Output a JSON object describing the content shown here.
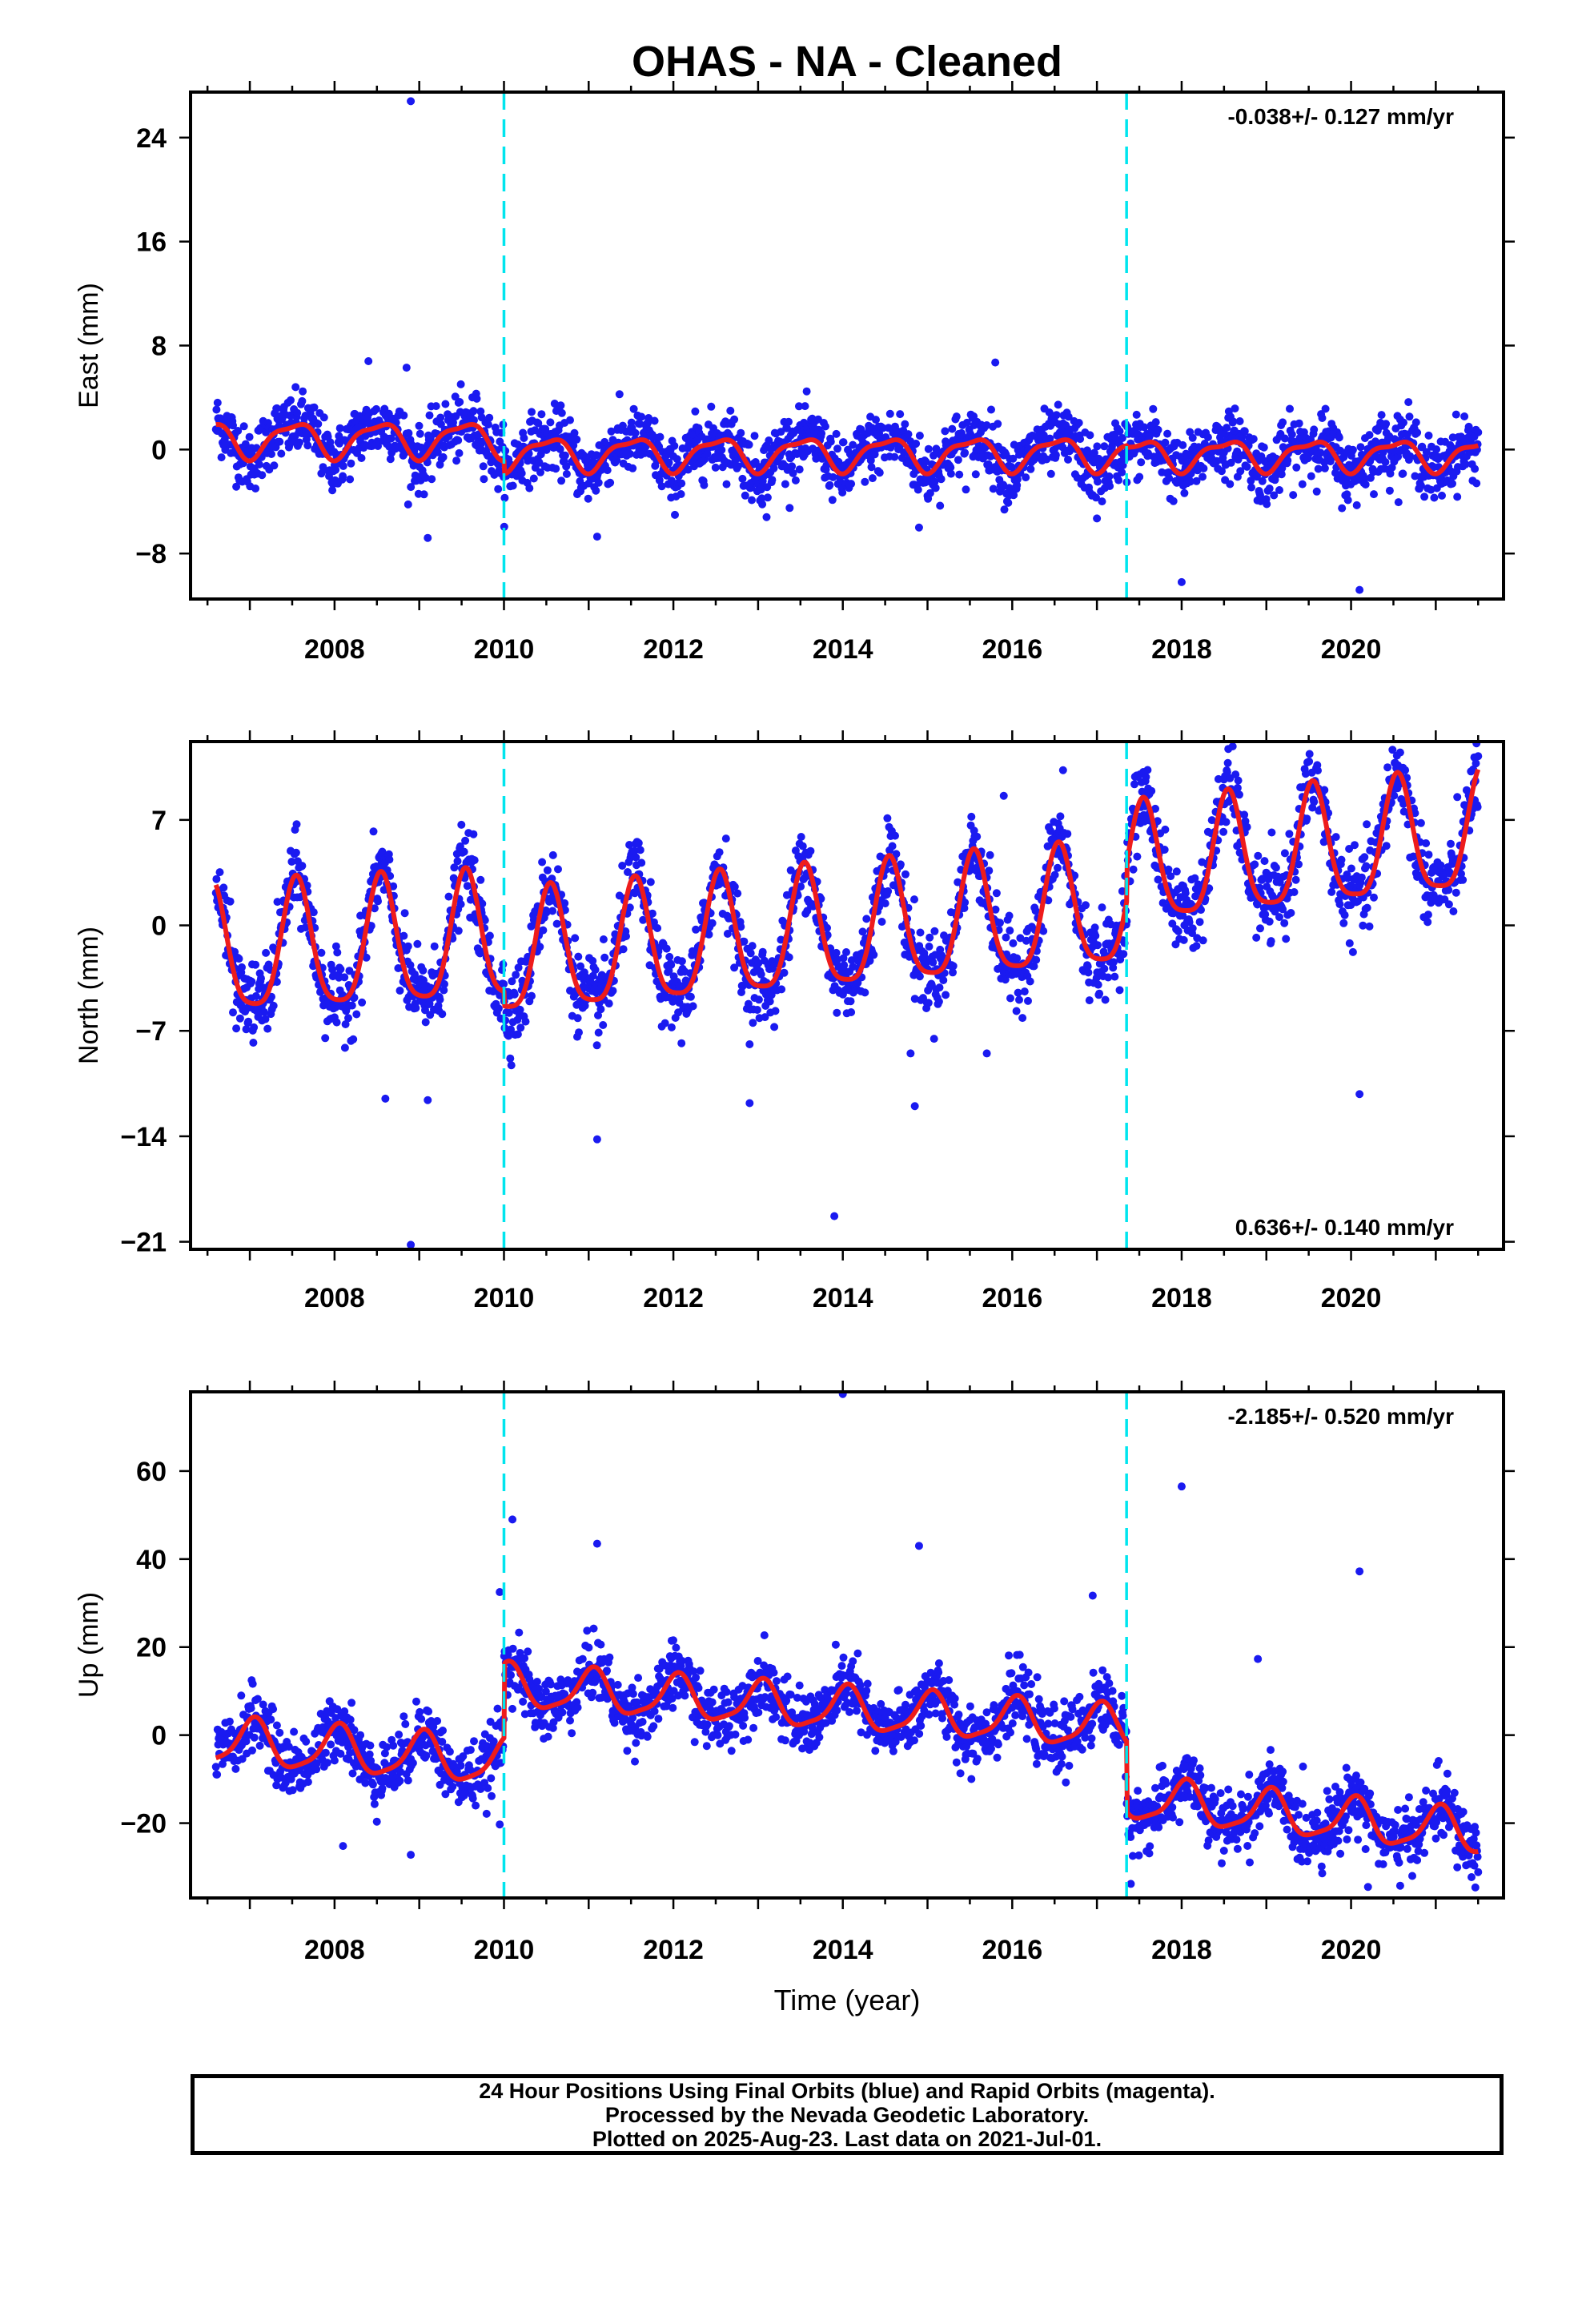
{
  "title": "OHAS  - NA - Cleaned",
  "colors": {
    "final_orbits": "#1a1af0",
    "model_fit": "#ee1c1c",
    "step_marker": "#00e5ee",
    "frame": "#000000"
  },
  "footer": [
    "24 Hour Positions Using Final Orbits (blue) and Rapid Orbits (magenta).",
    "Processed by the Nevada Geodetic Laboratory.",
    "Plotted on 2025-Aug-23. Last data on 2021-Jul-01."
  ],
  "chart_data": [
    {
      "type": "scatter",
      "component": "east",
      "ylabel": "East (mm)",
      "xlabel": "",
      "rate_label": "-0.038+/- 0.127 mm/yr",
      "rate_position": "top-right",
      "xlim": [
        2006.3,
        2021.8
      ],
      "ylim": [
        -11.5,
        27.5
      ],
      "x_ticks": [
        2008,
        2010,
        2012,
        2014,
        2016,
        2018,
        2020
      ],
      "y_ticks": [
        24,
        16,
        8,
        0,
        -8
      ],
      "grid": false,
      "data_start": 2006.6,
      "data_end": 2021.5,
      "step_epochs": [
        2010.0,
        2017.35
      ],
      "fit_segments": [
        {
          "t0": 2006.6,
          "t1": 2010.0,
          "offset": 0.8,
          "trend": 0.0,
          "annual_amp": 1.3,
          "annual_phase": 4.6,
          "semi_amp": 0.4,
          "semi_phase": 5.0
        },
        {
          "t0": 2010.0,
          "t1": 2017.35,
          "offset": -0.3,
          "trend": 0.0,
          "annual_amp": 1.2,
          "annual_phase": 4.6,
          "semi_amp": 0.4,
          "semi_phase": 5.0
        },
        {
          "t0": 2017.35,
          "t1": 2021.5,
          "offset": -0.4,
          "trend": 0.0,
          "annual_amp": 1.1,
          "annual_phase": 4.6,
          "semi_amp": 0.4,
          "semi_phase": 5.0
        }
      ],
      "noise_sd": 1.2,
      "outliers": [
        [
          2008.9,
          26.8
        ],
        [
          2008.4,
          6.8
        ],
        [
          2008.85,
          6.3
        ],
        [
          2015.8,
          6.7
        ],
        [
          2009.1,
          -6.8
        ],
        [
          2011.1,
          -6.7
        ],
        [
          2013.1,
          -5.2
        ],
        [
          2017.0,
          -5.3
        ],
        [
          2018.0,
          -10.2
        ],
        [
          2020.1,
          -10.8
        ],
        [
          2014.9,
          -6.0
        ]
      ]
    },
    {
      "type": "scatter",
      "component": "north",
      "ylabel": "North (mm)",
      "xlabel": "",
      "rate_label": "0.636+/- 0.140 mm/yr",
      "rate_position": "bottom-right",
      "xlim": [
        2006.3,
        2021.8
      ],
      "ylim": [
        -21.5,
        12.2
      ],
      "x_ticks": [
        2008,
        2010,
        2012,
        2014,
        2016,
        2018,
        2020
      ],
      "y_ticks": [
        7,
        0,
        -7,
        -14,
        -21
      ],
      "grid": false,
      "data_start": 2006.6,
      "data_end": 2021.5,
      "step_epochs": [
        2010.0,
        2017.35
      ],
      "fit_segments": [
        {
          "t0": 2006.6,
          "t1": 2010.0,
          "offset": -2.0,
          "trend": 0.25,
          "annual_amp": 4.2,
          "annual_phase": 4.4,
          "semi_amp": 0.9,
          "semi_phase": 1.0
        },
        {
          "t0": 2010.0,
          "t1": 2017.35,
          "offset": -2.3,
          "trend": 0.45,
          "annual_amp": 4.0,
          "annual_phase": 4.4,
          "semi_amp": 0.9,
          "semi_phase": 1.0
        },
        {
          "t0": 2017.35,
          "t1": 2021.5,
          "offset": 3.6,
          "trend": 0.55,
          "annual_amp": 3.9,
          "annual_phase": 4.4,
          "semi_amp": 0.9,
          "semi_phase": 1.0
        }
      ],
      "noise_sd": 1.3,
      "outliers": [
        [
          2008.9,
          -21.2
        ],
        [
          2013.9,
          -19.3
        ],
        [
          2020.1,
          -11.2
        ],
        [
          2008.6,
          -11.5
        ],
        [
          2009.1,
          -11.6
        ],
        [
          2011.1,
          -14.2
        ],
        [
          2012.9,
          -11.8
        ],
        [
          2014.85,
          -12.0
        ],
        [
          2014.8,
          -8.5
        ],
        [
          2015.7,
          -8.5
        ],
        [
          2015.9,
          8.6
        ],
        [
          2016.6,
          10.3
        ]
      ]
    },
    {
      "type": "scatter",
      "component": "up",
      "ylabel": "Up (mm)",
      "xlabel": "Time (year)",
      "rate_label": "-2.185+/- 0.520 mm/yr",
      "rate_position": "top-right",
      "xlim": [
        2006.3,
        2021.8
      ],
      "ylim": [
        -37,
        78
      ],
      "x_ticks": [
        2008,
        2010,
        2012,
        2014,
        2016,
        2018,
        2020
      ],
      "y_ticks": [
        60,
        40,
        20,
        0,
        -20
      ],
      "grid": false,
      "data_start": 2006.6,
      "data_end": 2021.5,
      "step_epochs": [
        2010.0,
        2017.35
      ],
      "fit_segments": [
        {
          "t0": 2006.6,
          "t1": 2010.0,
          "offset": -1.5,
          "trend": -1.4,
          "annual_amp": 5.2,
          "annual_phase": 1.3,
          "semi_amp": 1.2,
          "semi_phase": 0.5
        },
        {
          "t0": 2010.0,
          "t1": 2017.35,
          "offset": 11.0,
          "trend": -1.3,
          "annual_amp": 4.8,
          "annual_phase": 1.3,
          "semi_amp": 1.2,
          "semi_phase": 0.5
        },
        {
          "t0": 2017.35,
          "t1": 2021.5,
          "offset": -14.5,
          "trend": -1.9,
          "annual_amp": 4.8,
          "annual_phase": 1.3,
          "semi_amp": 1.2,
          "semi_phase": 0.5
        }
      ],
      "noise_sd": 3.6,
      "outliers": [
        [
          2014.0,
          77.5
        ],
        [
          2018.0,
          56.5
        ],
        [
          2020.1,
          37.2
        ],
        [
          2014.9,
          43.0
        ],
        [
          2010.1,
          49.0
        ],
        [
          2011.1,
          43.5
        ],
        [
          2009.95,
          32.5
        ],
        [
          2018.9,
          17.3
        ],
        [
          2008.1,
          -25.2
        ],
        [
          2008.9,
          -27.2
        ],
        [
          2009.95,
          -20.3
        ],
        [
          2017.4,
          -33.8
        ],
        [
          2020.2,
          -34.5
        ],
        [
          2016.95,
          31.7
        ]
      ]
    }
  ]
}
